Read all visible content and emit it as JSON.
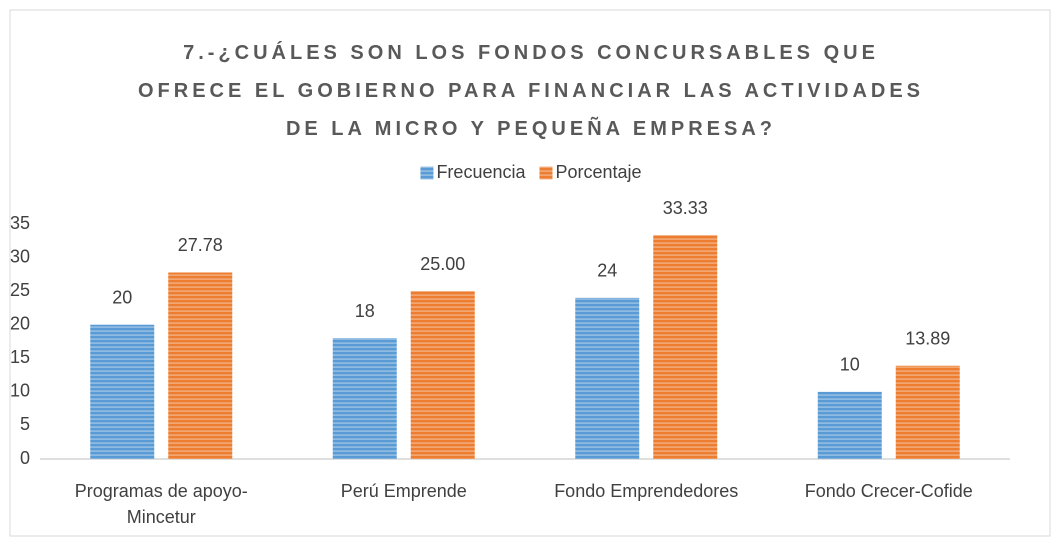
{
  "chart_data": {
    "type": "bar",
    "title": "7.-¿CUÁLES SON LOS FONDOS CONCURSABLES QUE OFRECE EL GOBIERNO PARA FINANCIAR LAS ACTIVIDADES DE LA MICRO Y PEQUEÑA EMPRESA?",
    "categories": [
      "Programas de apoyo-Mincetur",
      "Perú Emprende",
      "Fondo Emprendedores",
      "Fondo Crecer-Cofide"
    ],
    "series": [
      {
        "name": "Frecuencia",
        "color": "#5b9bd5",
        "values": [
          20,
          18,
          24,
          10
        ]
      },
      {
        "name": "Porcentaje",
        "color": "#ed7d31",
        "values": [
          27.78,
          25,
          33.33,
          13.89
        ],
        "value_labels": [
          "27.78",
          "25.00",
          "33.33",
          "13.89"
        ]
      }
    ],
    "ylim": [
      0,
      35
    ],
    "yticks": [
      0,
      5,
      10,
      15,
      20,
      25,
      30,
      35
    ],
    "grid": false,
    "legend": "top"
  }
}
